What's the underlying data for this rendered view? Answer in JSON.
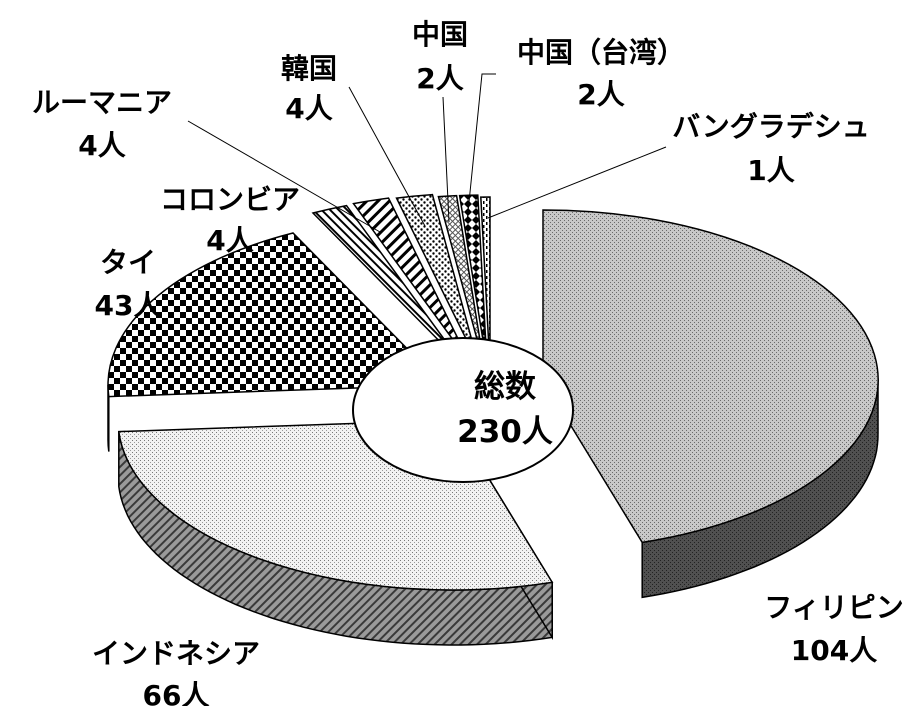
{
  "chart_data": {
    "type": "pie",
    "style": "3d-exploded-doughnut",
    "total_label": "総数",
    "total_value": "230人",
    "slices": [
      {
        "name": "フィリピン",
        "value": 104,
        "value_label": "104人"
      },
      {
        "name": "インドネシア",
        "value": 66,
        "value_label": "66人"
      },
      {
        "name": "タイ",
        "value": 43,
        "value_label": "43人"
      },
      {
        "name": "コロンビア",
        "value": 4,
        "value_label": "4人"
      },
      {
        "name": "ルーマニア",
        "value": 4,
        "value_label": "4人"
      },
      {
        "name": "韓国",
        "value": 4,
        "value_label": "4人"
      },
      {
        "name": "中国",
        "value": 2,
        "value_label": "2人"
      },
      {
        "name": "中国（台湾）",
        "value": 2,
        "value_label": "2人"
      },
      {
        "name": "バングラデシュ",
        "value": 1,
        "value_label": "1人"
      }
    ]
  }
}
